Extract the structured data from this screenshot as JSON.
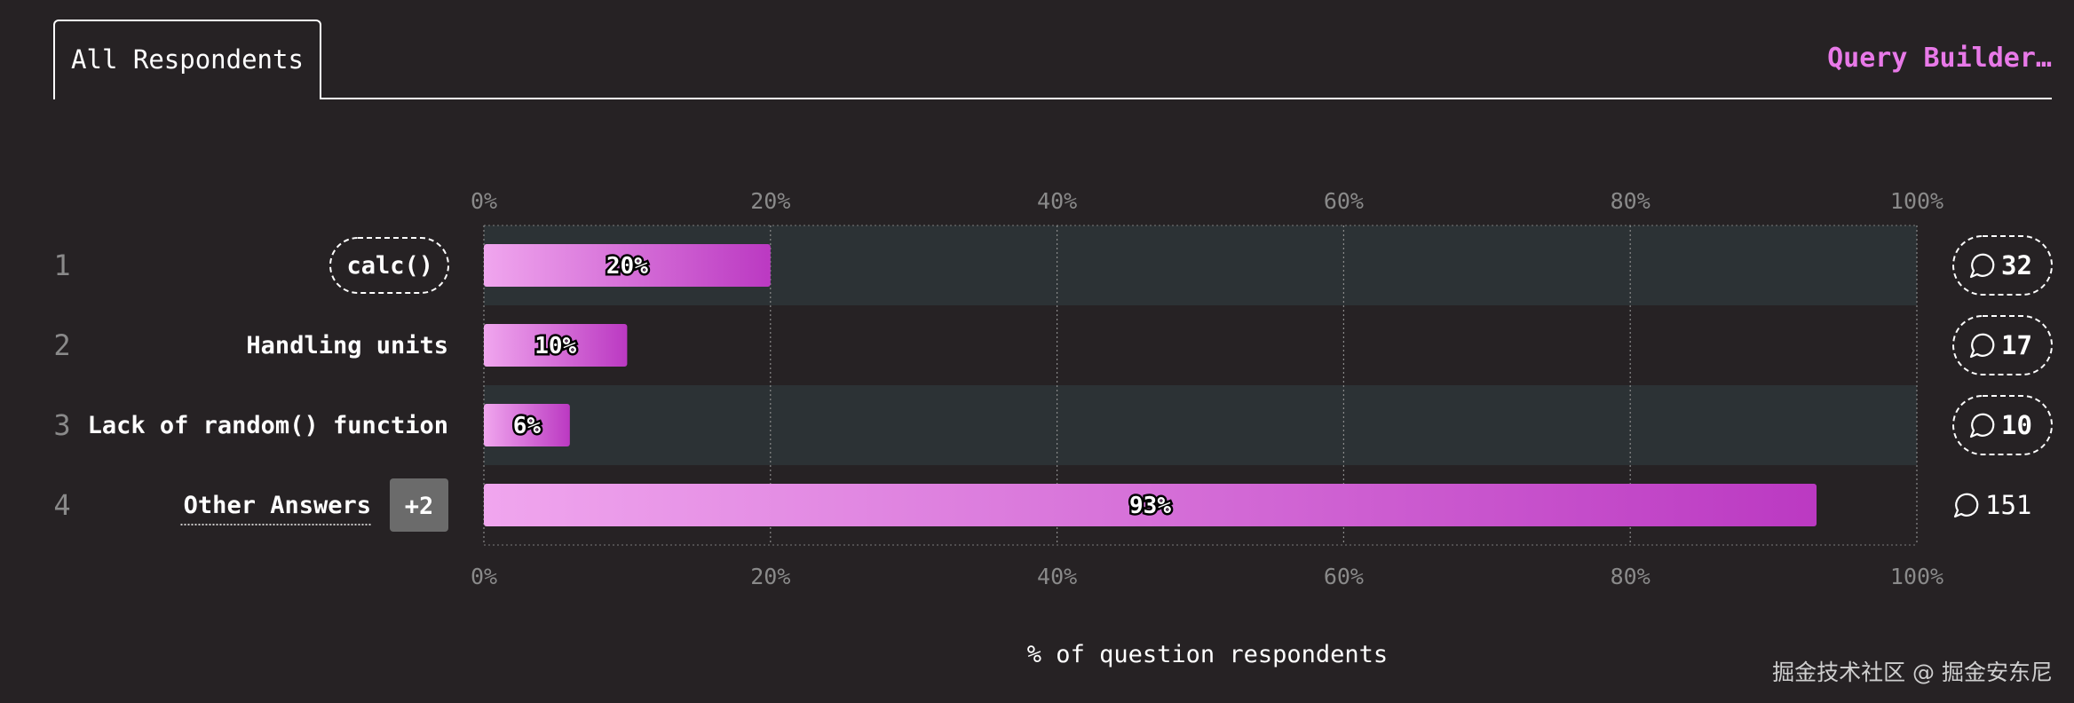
{
  "tabs": [
    {
      "label": "All Respondents"
    }
  ],
  "query_builder": {
    "label": "Query Builder…"
  },
  "watermark": "掘金技术社区 @ 掘金安东尼",
  "colors": {
    "background": "#262224",
    "row_stripe": "#2c3235",
    "bar_start": "#f0a6ee",
    "bar_end": "#bb39c2",
    "accent": "#e879e8",
    "muted": "#8a8a8a"
  },
  "chart_data": {
    "type": "bar",
    "orientation": "horizontal",
    "title": "",
    "xlabel": "% of question respondents",
    "ylabel": "",
    "xlim": [
      0,
      100
    ],
    "ticks": [
      "0%",
      "20%",
      "40%",
      "60%",
      "80%",
      "100%"
    ],
    "grid": true,
    "rows": [
      {
        "rank": "1",
        "label": "calc()",
        "value": 20,
        "value_label": "20%",
        "comments": "32",
        "style": "pill"
      },
      {
        "rank": "2",
        "label": "Handling units",
        "value": 10,
        "value_label": "10%",
        "comments": "17",
        "style": "plain"
      },
      {
        "rank": "3",
        "label": "Lack of random() function",
        "value": 6,
        "value_label": "6%",
        "comments": "10",
        "style": "plain"
      },
      {
        "rank": "4",
        "label": "Other Answers",
        "badge": "+2",
        "value": 93,
        "value_label": "93%",
        "comments": "151",
        "style": "other"
      }
    ]
  }
}
